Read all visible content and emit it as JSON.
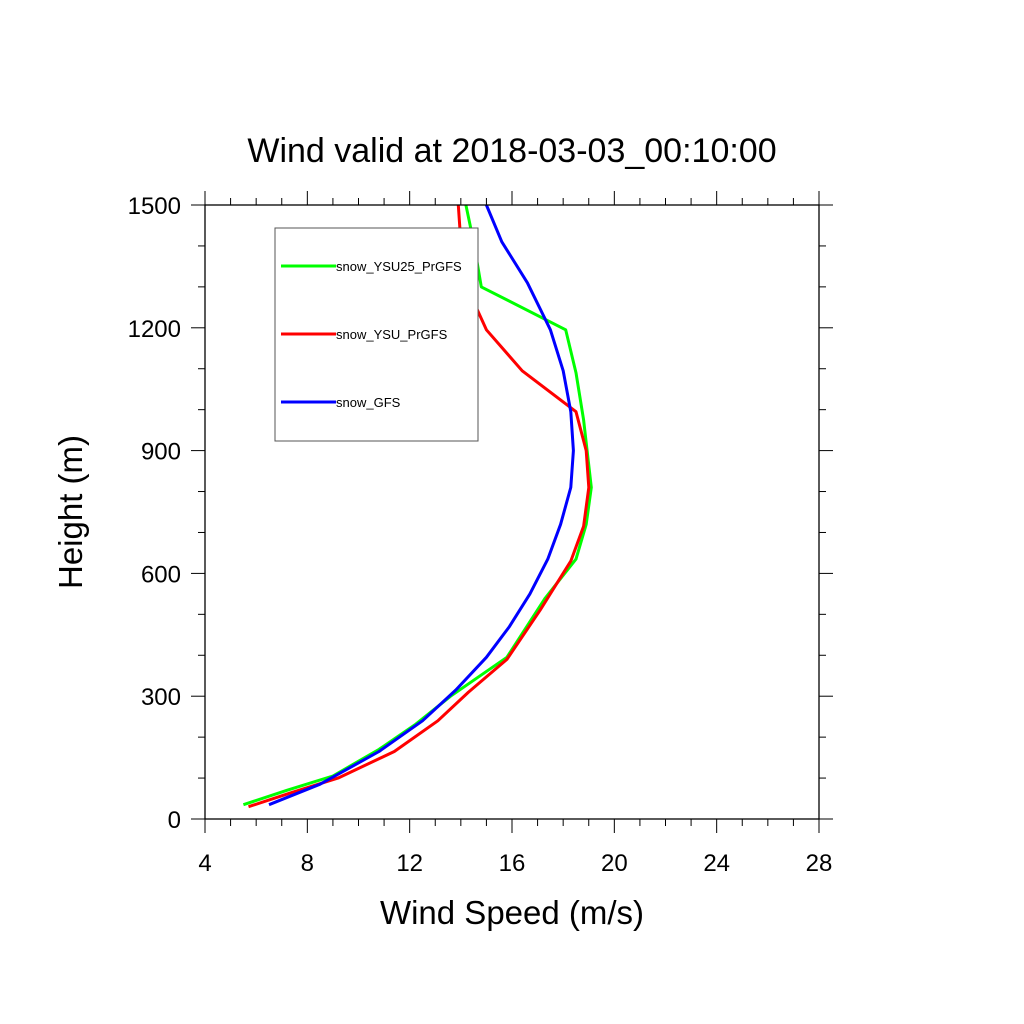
{
  "chart_data": {
    "type": "line",
    "title": "Wind valid at 2018-03-03_00:10:00",
    "xlabel": "Wind Speed (m/s)",
    "ylabel": "Height (m)",
    "xlim": [
      4,
      28
    ],
    "ylim": [
      0,
      1500
    ],
    "xticks": [
      4,
      8,
      12,
      16,
      20,
      24,
      28
    ],
    "yticks": [
      0,
      300,
      600,
      900,
      1200,
      1500
    ],
    "xtick_labels": [
      "4",
      "8",
      "12",
      "16",
      "20",
      "24",
      "28"
    ],
    "ytick_labels": [
      "0",
      "300",
      "600",
      "900",
      "1200",
      "1500"
    ],
    "grid": false,
    "legend_position": "top-left",
    "series": [
      {
        "name": "snow_YSU25_PrGFS",
        "color": "#00ff00",
        "points": [
          [
            5.5,
            35
          ],
          [
            7.2,
            70
          ],
          [
            9.0,
            105
          ],
          [
            10.8,
            170
          ],
          [
            12.2,
            230
          ],
          [
            13.6,
            300
          ],
          [
            15.8,
            395
          ],
          [
            17.3,
            540
          ],
          [
            18.5,
            635
          ],
          [
            18.9,
            720
          ],
          [
            19.1,
            810
          ],
          [
            18.8,
            975
          ],
          [
            18.5,
            1090
          ],
          [
            18.1,
            1195
          ],
          [
            14.8,
            1300
          ],
          [
            14.5,
            1410
          ],
          [
            14.2,
            1500
          ]
        ]
      },
      {
        "name": "snow_YSU_PrGFS",
        "color": "#ff0000",
        "points": [
          [
            5.7,
            30
          ],
          [
            7.4,
            65
          ],
          [
            9.2,
            100
          ],
          [
            11.4,
            165
          ],
          [
            13.1,
            240
          ],
          [
            14.3,
            310
          ],
          [
            15.8,
            390
          ],
          [
            17.1,
            510
          ],
          [
            18.3,
            630
          ],
          [
            18.8,
            715
          ],
          [
            19.0,
            810
          ],
          [
            18.9,
            900
          ],
          [
            18.5,
            995
          ],
          [
            16.4,
            1095
          ],
          [
            15.0,
            1195
          ],
          [
            14.2,
            1305
          ],
          [
            14.0,
            1410
          ],
          [
            13.9,
            1500
          ]
        ]
      },
      {
        "name": "snow_GFS",
        "color": "#0000ff",
        "points": [
          [
            6.5,
            35
          ],
          [
            8.5,
            85
          ],
          [
            10.8,
            165
          ],
          [
            12.5,
            240
          ],
          [
            13.8,
            315
          ],
          [
            15.0,
            395
          ],
          [
            15.9,
            470
          ],
          [
            16.7,
            550
          ],
          [
            17.4,
            635
          ],
          [
            17.9,
            720
          ],
          [
            18.3,
            810
          ],
          [
            18.4,
            900
          ],
          [
            18.3,
            995
          ],
          [
            18.0,
            1095
          ],
          [
            17.5,
            1195
          ],
          [
            16.6,
            1310
          ],
          [
            15.6,
            1410
          ],
          [
            15.0,
            1500
          ]
        ]
      }
    ]
  }
}
